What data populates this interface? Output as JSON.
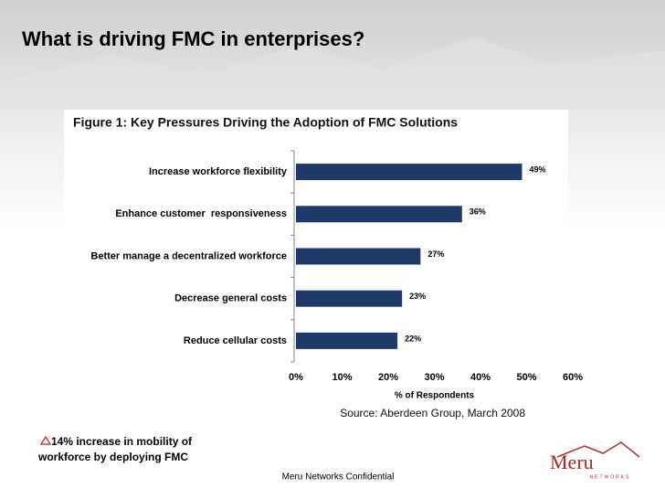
{
  "slide": {
    "title": "What is driving FMC in enterprises?",
    "bullet": [
      "14% increase in mobility of",
      "workforce by deploying FMC"
    ],
    "footer": "Meru Networks Confidential",
    "logo": {
      "name": "Meru",
      "sub": "NETWORKS"
    }
  },
  "chart_data": {
    "type": "bar",
    "orientation": "horizontal",
    "title": "Figure 1: Key Pressures Driving the Adoption of FMC Solutions",
    "categories": [
      "Increase workforce flexibility",
      "Enhance customer  responsiveness",
      "Better manage a decentralized workforce",
      "Decrease general costs",
      "Reduce cellular costs"
    ],
    "values": [
      49,
      36,
      27,
      23,
      22
    ],
    "value_labels": [
      "49%",
      "36%",
      "27%",
      "23%",
      "22%"
    ],
    "color": "#1f3a68",
    "xlim": [
      0,
      60
    ],
    "xticks": [
      {
        "value": 0,
        "label": "0%"
      },
      {
        "value": 10,
        "label": "10%"
      },
      {
        "value": 20,
        "label": "20%"
      },
      {
        "value": 30,
        "label": "30%"
      },
      {
        "value": 40,
        "label": "40%"
      },
      {
        "value": 50,
        "label": "50%"
      },
      {
        "value": 60,
        "label": "60%"
      }
    ],
    "xlabel": "% of Respondents",
    "source": "Source: Aberdeen Group, March 2008",
    "grid": false
  }
}
